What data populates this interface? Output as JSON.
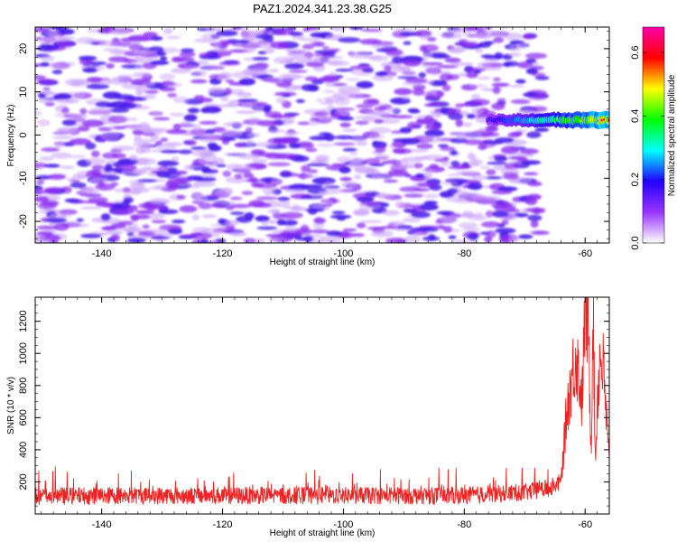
{
  "chart_data": [
    {
      "type": "heatmap",
      "title": "PAZ1.2024.341.23.38.G25",
      "xlabel": "Height of straight line (km)",
      "ylabel": "Frequency (Hz)",
      "xlim": [
        -151,
        -56
      ],
      "ylim": [
        -25,
        25
      ],
      "x_ticks": [
        -140,
        -120,
        -100,
        -80,
        -60
      ],
      "y_ticks": [
        -20,
        -10,
        0,
        10,
        20
      ],
      "x_tick_labels": [
        "-140",
        "-120",
        "-100",
        "-80",
        "-60"
      ],
      "y_tick_labels": [
        "-20",
        "-10",
        "0",
        "10",
        "20"
      ],
      "background_color": "#ffffff",
      "noise_x_range": [
        -151,
        -67
      ],
      "noise_color": "#7a22ee",
      "noise_amplitude_range": [
        0.0,
        0.15
      ],
      "signal_band": {
        "x_range": [
          -76,
          -56
        ],
        "frequency": 3.5,
        "amplitude_range": [
          0.2,
          0.7
        ]
      },
      "colorbar": {
        "label": "Normalized spectral amplitude",
        "range": [
          0.0,
          0.68
        ],
        "ticks": [
          0.0,
          0.2,
          0.4,
          0.6
        ],
        "tick_labels": [
          "0.0",
          "0.2",
          "0.4",
          "0.6"
        ],
        "colors": [
          "#ffffff",
          "#9933ff",
          "#2200ff",
          "#00ffff",
          "#00ff00",
          "#ffff00",
          "#ff0000",
          "#ff00aa"
        ]
      }
    },
    {
      "type": "line",
      "title": "",
      "xlabel": "Height of straight line (km)",
      "ylabel": "SNR (10 * v/v)",
      "xlim": [
        -151,
        -56
      ],
      "ylim": [
        0,
        1350
      ],
      "x_ticks": [
        -140,
        -120,
        -100,
        -80,
        -60
      ],
      "y_ticks": [
        200,
        400,
        600,
        800,
        1000,
        1200
      ],
      "x_tick_labels": [
        "-140",
        "-120",
        "-100",
        "-80",
        "-60"
      ],
      "y_tick_labels": [
        "200",
        "400",
        "600",
        "800",
        "1000",
        "1200"
      ],
      "line_color": "#ee2222",
      "series": [
        {
          "description_points": [
            [
              -151,
              110
            ],
            [
              -140,
              115
            ],
            [
              -120,
              115
            ],
            [
              -100,
              115
            ],
            [
              -80,
              115
            ],
            [
              -70,
              135
            ],
            [
              -66,
              160
            ],
            [
              -64,
              200
            ],
            [
              -63,
              650
            ],
            [
              -62,
              900
            ],
            [
              -61.5,
              1000
            ],
            [
              -61,
              850
            ],
            [
              -60.5,
              700
            ],
            [
              -60,
              1280
            ],
            [
              -59.5,
              1200
            ],
            [
              -59,
              400
            ],
            [
              -58.7,
              1320
            ],
            [
              -58.3,
              300
            ],
            [
              -58,
              700
            ],
            [
              -57.5,
              1000
            ],
            [
              -57,
              900
            ],
            [
              -56.5,
              600
            ],
            [
              -56,
              300
            ]
          ]
        }
      ]
    }
  ]
}
